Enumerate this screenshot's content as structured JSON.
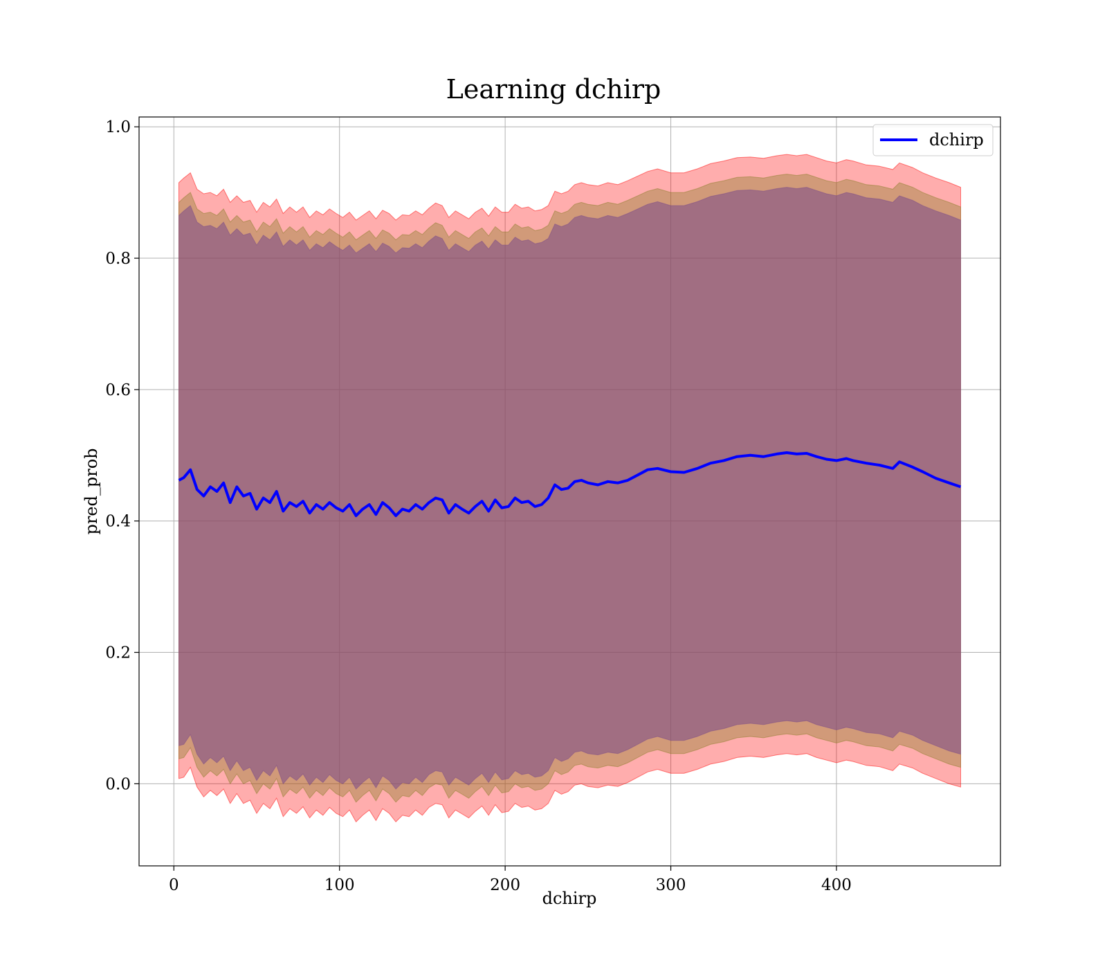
{
  "chart_data": {
    "type": "line",
    "title": "Learning dchirp",
    "xlabel": "dchirp",
    "ylabel": "pred_prob",
    "xlim": [
      -21,
      499
    ],
    "ylim": [
      -0.125,
      1.015
    ],
    "xticks": [
      0,
      100,
      200,
      300,
      400
    ],
    "yticks": [
      0.0,
      0.2,
      0.4,
      0.6,
      0.8,
      1.0
    ],
    "x_tick_labels": [
      "0",
      "100",
      "200",
      "300",
      "400"
    ],
    "y_tick_labels": [
      "0.0",
      "0.2",
      "0.4",
      "0.6",
      "0.8",
      "1.0"
    ],
    "grid": true,
    "legend_position": "top-right",
    "series": [
      {
        "name": "dchirp",
        "color": "#0000ff",
        "x": [
          3,
          6,
          10,
          14,
          18,
          22,
          26,
          30,
          34,
          38,
          42,
          46,
          50,
          54,
          58,
          62,
          66,
          70,
          74,
          78,
          82,
          86,
          90,
          94,
          98,
          102,
          106,
          110,
          114,
          118,
          122,
          126,
          130,
          134,
          138,
          142,
          146,
          150,
          154,
          158,
          162,
          166,
          170,
          174,
          178,
          182,
          186,
          190,
          194,
          198,
          202,
          206,
          210,
          214,
          218,
          222,
          226,
          230,
          234,
          238,
          242,
          246,
          250,
          256,
          262,
          268,
          274,
          280,
          286,
          292,
          300,
          308,
          316,
          324,
          332,
          340,
          348,
          356,
          364,
          370,
          376,
          382,
          388,
          394,
          400,
          406,
          410,
          418,
          426,
          434,
          438,
          446,
          452,
          460,
          468,
          475
        ],
        "values": [
          0.462,
          0.466,
          0.478,
          0.448,
          0.438,
          0.452,
          0.445,
          0.458,
          0.428,
          0.452,
          0.438,
          0.442,
          0.418,
          0.435,
          0.428,
          0.445,
          0.415,
          0.428,
          0.422,
          0.43,
          0.412,
          0.425,
          0.418,
          0.428,
          0.42,
          0.415,
          0.425,
          0.408,
          0.418,
          0.425,
          0.41,
          0.428,
          0.42,
          0.408,
          0.418,
          0.415,
          0.425,
          0.418,
          0.428,
          0.435,
          0.432,
          0.412,
          0.425,
          0.418,
          0.412,
          0.422,
          0.43,
          0.415,
          0.432,
          0.42,
          0.422,
          0.435,
          0.428,
          0.43,
          0.422,
          0.425,
          0.435,
          0.455,
          0.448,
          0.45,
          0.46,
          0.462,
          0.458,
          0.455,
          0.46,
          0.458,
          0.462,
          0.47,
          0.478,
          0.48,
          0.475,
          0.474,
          0.48,
          0.488,
          0.492,
          0.498,
          0.5,
          0.498,
          0.502,
          0.504,
          0.502,
          0.503,
          0.498,
          0.494,
          0.492,
          0.495,
          0.492,
          0.488,
          0.485,
          0.48,
          0.49,
          0.482,
          0.475,
          0.465,
          0.458,
          0.452
        ],
        "bands": [
          {
            "color": "#ff0000",
            "opacity": 0.32,
            "upper": [
              0.915,
              0.922,
              0.93,
              0.905,
              0.898,
              0.9,
              0.895,
              0.905,
              0.885,
              0.895,
              0.885,
              0.888,
              0.87,
              0.885,
              0.878,
              0.89,
              0.868,
              0.878,
              0.87,
              0.878,
              0.862,
              0.872,
              0.866,
              0.875,
              0.868,
              0.862,
              0.87,
              0.858,
              0.865,
              0.872,
              0.86,
              0.873,
              0.868,
              0.858,
              0.866,
              0.865,
              0.872,
              0.866,
              0.876,
              0.884,
              0.88,
              0.862,
              0.872,
              0.866,
              0.86,
              0.87,
              0.876,
              0.864,
              0.878,
              0.87,
              0.87,
              0.882,
              0.876,
              0.878,
              0.872,
              0.874,
              0.88,
              0.902,
              0.898,
              0.902,
              0.912,
              0.915,
              0.912,
              0.91,
              0.915,
              0.912,
              0.918,
              0.925,
              0.932,
              0.936,
              0.93,
              0.93,
              0.936,
              0.944,
              0.948,
              0.953,
              0.954,
              0.952,
              0.956,
              0.958,
              0.956,
              0.958,
              0.953,
              0.948,
              0.945,
              0.95,
              0.948,
              0.942,
              0.94,
              0.935,
              0.945,
              0.938,
              0.93,
              0.922,
              0.915,
              0.908
            ],
            "lower": [
              0.008,
              0.01,
              0.025,
              -0.005,
              -0.02,
              -0.01,
              -0.018,
              -0.008,
              -0.03,
              -0.015,
              -0.03,
              -0.025,
              -0.045,
              -0.03,
              -0.038,
              -0.022,
              -0.05,
              -0.038,
              -0.045,
              -0.035,
              -0.052,
              -0.04,
              -0.048,
              -0.036,
              -0.045,
              -0.05,
              -0.04,
              -0.058,
              -0.048,
              -0.04,
              -0.056,
              -0.038,
              -0.045,
              -0.058,
              -0.048,
              -0.05,
              -0.04,
              -0.048,
              -0.036,
              -0.03,
              -0.032,
              -0.052,
              -0.04,
              -0.046,
              -0.052,
              -0.042,
              -0.034,
              -0.048,
              -0.032,
              -0.044,
              -0.042,
              -0.03,
              -0.036,
              -0.034,
              -0.04,
              -0.038,
              -0.03,
              -0.01,
              -0.016,
              -0.012,
              -0.002,
              0.0,
              -0.004,
              -0.006,
              -0.002,
              -0.004,
              0.002,
              0.01,
              0.018,
              0.022,
              0.016,
              0.016,
              0.022,
              0.03,
              0.034,
              0.04,
              0.042,
              0.04,
              0.044,
              0.046,
              0.044,
              0.046,
              0.04,
              0.036,
              0.032,
              0.036,
              0.034,
              0.028,
              0.026,
              0.02,
              0.03,
              0.024,
              0.016,
              0.008,
              0.0,
              -0.005
            ]
          },
          {
            "color": "#8b7d2a",
            "opacity": 0.4,
            "upper": [
              0.885,
              0.892,
              0.9,
              0.875,
              0.868,
              0.87,
              0.865,
              0.875,
              0.855,
              0.865,
              0.855,
              0.858,
              0.84,
              0.855,
              0.848,
              0.86,
              0.838,
              0.848,
              0.84,
              0.848,
              0.832,
              0.842,
              0.836,
              0.845,
              0.838,
              0.832,
              0.84,
              0.828,
              0.835,
              0.842,
              0.83,
              0.843,
              0.838,
              0.828,
              0.836,
              0.835,
              0.842,
              0.836,
              0.846,
              0.854,
              0.85,
              0.832,
              0.842,
              0.836,
              0.83,
              0.84,
              0.846,
              0.834,
              0.848,
              0.84,
              0.84,
              0.852,
              0.846,
              0.848,
              0.842,
              0.844,
              0.85,
              0.872,
              0.868,
              0.872,
              0.882,
              0.885,
              0.882,
              0.88,
              0.885,
              0.882,
              0.888,
              0.895,
              0.902,
              0.906,
              0.9,
              0.9,
              0.906,
              0.914,
              0.918,
              0.923,
              0.924,
              0.922,
              0.926,
              0.928,
              0.926,
              0.928,
              0.923,
              0.918,
              0.915,
              0.92,
              0.918,
              0.912,
              0.91,
              0.905,
              0.915,
              0.908,
              0.9,
              0.892,
              0.885,
              0.878
            ],
            "lower": [
              0.038,
              0.04,
              0.055,
              0.025,
              0.01,
              0.02,
              0.012,
              0.022,
              0.0,
              0.015,
              0.0,
              0.005,
              -0.015,
              0.0,
              -0.008,
              0.008,
              -0.02,
              -0.008,
              -0.015,
              -0.005,
              -0.022,
              -0.01,
              -0.018,
              -0.006,
              -0.015,
              -0.02,
              -0.01,
              -0.028,
              -0.018,
              -0.01,
              -0.026,
              -0.008,
              -0.015,
              -0.028,
              -0.018,
              -0.02,
              -0.01,
              -0.018,
              -0.006,
              0.0,
              -0.002,
              -0.022,
              -0.01,
              -0.016,
              -0.022,
              -0.012,
              -0.004,
              -0.018,
              -0.002,
              -0.014,
              -0.012,
              0.0,
              -0.006,
              -0.004,
              -0.01,
              -0.008,
              0.0,
              0.02,
              0.014,
              0.018,
              0.028,
              0.03,
              0.026,
              0.024,
              0.028,
              0.026,
              0.032,
              0.04,
              0.048,
              0.052,
              0.046,
              0.046,
              0.052,
              0.06,
              0.064,
              0.07,
              0.072,
              0.07,
              0.074,
              0.076,
              0.074,
              0.076,
              0.07,
              0.066,
              0.062,
              0.066,
              0.064,
              0.058,
              0.056,
              0.05,
              0.06,
              0.054,
              0.046,
              0.038,
              0.03,
              0.025
            ]
          },
          {
            "color": "#7a4a8a",
            "opacity": 0.55,
            "upper": [
              0.865,
              0.872,
              0.88,
              0.855,
              0.848,
              0.85,
              0.845,
              0.855,
              0.835,
              0.845,
              0.835,
              0.838,
              0.82,
              0.835,
              0.828,
              0.84,
              0.818,
              0.828,
              0.82,
              0.828,
              0.812,
              0.822,
              0.816,
              0.825,
              0.818,
              0.812,
              0.82,
              0.808,
              0.815,
              0.822,
              0.81,
              0.823,
              0.818,
              0.808,
              0.816,
              0.815,
              0.822,
              0.816,
              0.826,
              0.834,
              0.83,
              0.812,
              0.822,
              0.816,
              0.81,
              0.82,
              0.826,
              0.814,
              0.828,
              0.82,
              0.82,
              0.832,
              0.826,
              0.828,
              0.822,
              0.824,
              0.83,
              0.852,
              0.848,
              0.852,
              0.862,
              0.865,
              0.862,
              0.86,
              0.865,
              0.862,
              0.868,
              0.875,
              0.882,
              0.886,
              0.88,
              0.88,
              0.886,
              0.894,
              0.898,
              0.903,
              0.904,
              0.902,
              0.906,
              0.908,
              0.906,
              0.908,
              0.903,
              0.898,
              0.895,
              0.9,
              0.898,
              0.892,
              0.89,
              0.885,
              0.895,
              0.888,
              0.88,
              0.872,
              0.865,
              0.858
            ],
            "lower": [
              0.058,
              0.06,
              0.075,
              0.045,
              0.03,
              0.04,
              0.032,
              0.042,
              0.02,
              0.035,
              0.02,
              0.025,
              0.005,
              0.02,
              0.012,
              0.028,
              0.0,
              0.012,
              0.005,
              0.015,
              -0.002,
              0.01,
              0.002,
              0.014,
              0.005,
              0.0,
              0.01,
              -0.008,
              0.002,
              0.01,
              -0.006,
              0.012,
              0.005,
              -0.008,
              0.002,
              0.0,
              0.01,
              0.002,
              0.014,
              0.02,
              0.018,
              -0.002,
              0.01,
              0.004,
              -0.002,
              0.008,
              0.016,
              0.002,
              0.018,
              0.006,
              0.008,
              0.02,
              0.014,
              0.016,
              0.01,
              0.012,
              0.02,
              0.04,
              0.034,
              0.038,
              0.048,
              0.05,
              0.046,
              0.044,
              0.048,
              0.046,
              0.052,
              0.06,
              0.068,
              0.072,
              0.066,
              0.066,
              0.072,
              0.08,
              0.084,
              0.09,
              0.092,
              0.09,
              0.094,
              0.096,
              0.094,
              0.096,
              0.09,
              0.086,
              0.082,
              0.086,
              0.084,
              0.078,
              0.076,
              0.07,
              0.08,
              0.074,
              0.066,
              0.058,
              0.05,
              0.045
            ]
          }
        ]
      }
    ]
  }
}
